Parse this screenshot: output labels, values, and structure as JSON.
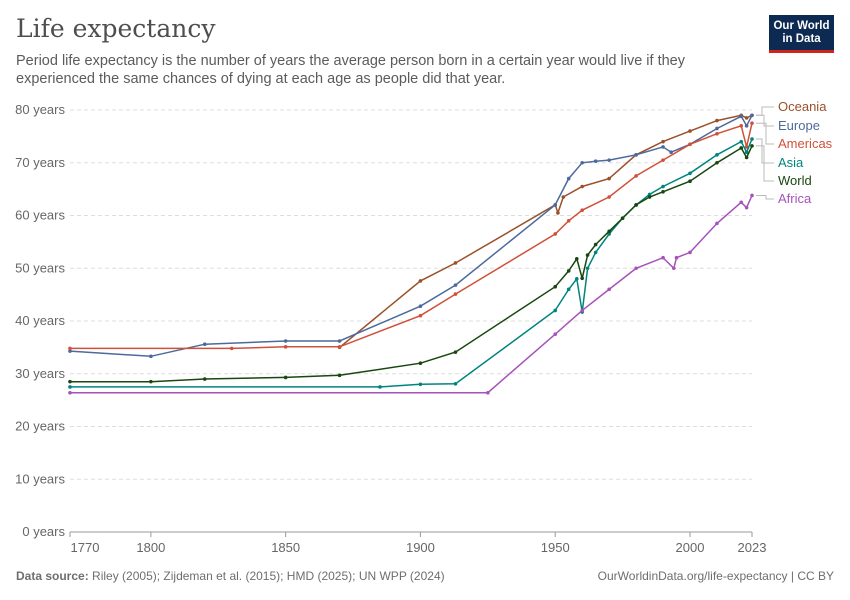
{
  "header": {
    "title": "Life expectancy",
    "subtitle": "Period life expectancy is the number of years the average person born in a certain year would live if they experienced the same chances of dying at each age as people did that year.",
    "logo": "Our World in Data"
  },
  "footer": {
    "source_label": "Data source:",
    "source": "Riley (2005); Zijdeman et al. (2015); HMD (2025); UN WPP (2024)",
    "url": "OurWorldinData.org/life-expectancy | CC BY"
  },
  "chart_data": {
    "type": "line",
    "title": "Life expectancy",
    "xlim": [
      1770,
      2023
    ],
    "ylim": [
      0,
      80
    ],
    "x_ticks": [
      "1770",
      "1800",
      "1850",
      "1900",
      "1950",
      "2000",
      "2023"
    ],
    "x_tick_values": [
      1770,
      1800,
      1850,
      1900,
      1950,
      2000,
      2023
    ],
    "y_ticks": [
      "0 years",
      "10 years",
      "20 years",
      "30 years",
      "40 years",
      "50 years",
      "60 years",
      "70 years",
      "80 years"
    ],
    "y_tick_values": [
      0,
      10,
      20,
      30,
      40,
      50,
      60,
      70,
      80
    ],
    "grid": "horizontal dashed",
    "legend": "right (line labels)",
    "series": [
      {
        "name": "Oceania",
        "color": "#9a5129",
        "points": [
          [
            1870,
            35
          ],
          [
            1900,
            47.6
          ],
          [
            1913,
            51
          ],
          [
            1950,
            62
          ],
          [
            1951,
            60.5
          ],
          [
            1953,
            63.5
          ],
          [
            1960,
            65.5
          ],
          [
            1970,
            67
          ],
          [
            1980,
            71.5
          ],
          [
            1990,
            74
          ],
          [
            2000,
            76
          ],
          [
            2010,
            78
          ],
          [
            2019,
            79
          ],
          [
            2021,
            78.5
          ],
          [
            2023,
            79
          ]
        ]
      },
      {
        "name": "Europe",
        "color": "#4c6a9c",
        "points": [
          [
            1770,
            34.3
          ],
          [
            1800,
            33.3
          ],
          [
            1820,
            35.6
          ],
          [
            1850,
            36.2
          ],
          [
            1870,
            36.2
          ],
          [
            1900,
            42.8
          ],
          [
            1913,
            46.8
          ],
          [
            1950,
            62
          ],
          [
            1955,
            67
          ],
          [
            1960,
            70
          ],
          [
            1965,
            70.3
          ],
          [
            1970,
            70.5
          ],
          [
            1980,
            71.5
          ],
          [
            1990,
            73
          ],
          [
            1993,
            72
          ],
          [
            2000,
            73.5
          ],
          [
            2010,
            76.5
          ],
          [
            2019,
            78.8
          ],
          [
            2021,
            77
          ],
          [
            2023,
            79
          ]
        ]
      },
      {
        "name": "Americas",
        "color": "#d1503a",
        "points": [
          [
            1770,
            34.8
          ],
          [
            1830,
            34.8
          ],
          [
            1850,
            35.1
          ],
          [
            1870,
            35.1
          ],
          [
            1900,
            41
          ],
          [
            1913,
            45.1
          ],
          [
            1950,
            56.5
          ],
          [
            1955,
            59
          ],
          [
            1960,
            61
          ],
          [
            1970,
            63.5
          ],
          [
            1980,
            67.5
          ],
          [
            1990,
            70.5
          ],
          [
            2000,
            73.5
          ],
          [
            2010,
            75.5
          ],
          [
            2019,
            77
          ],
          [
            2021,
            73
          ],
          [
            2023,
            77.5
          ]
        ]
      },
      {
        "name": "Asia",
        "color": "#00847e",
        "points": [
          [
            1770,
            27.5
          ],
          [
            1885,
            27.5
          ],
          [
            1900,
            28
          ],
          [
            1913,
            28.1
          ],
          [
            1950,
            42
          ],
          [
            1955,
            46
          ],
          [
            1958,
            48
          ],
          [
            1960,
            41.7
          ],
          [
            1962,
            50
          ],
          [
            1965,
            53
          ],
          [
            1970,
            56.5
          ],
          [
            1975,
            59.5
          ],
          [
            1980,
            62
          ],
          [
            1985,
            64
          ],
          [
            1990,
            65.5
          ],
          [
            2000,
            68
          ],
          [
            2010,
            71.5
          ],
          [
            2019,
            74
          ],
          [
            2021,
            72
          ],
          [
            2023,
            74.5
          ]
        ]
      },
      {
        "name": "World",
        "color": "#18470f",
        "points": [
          [
            1770,
            28.5
          ],
          [
            1800,
            28.5
          ],
          [
            1820,
            29
          ],
          [
            1850,
            29.3
          ],
          [
            1870,
            29.7
          ],
          [
            1900,
            32
          ],
          [
            1913,
            34.1
          ],
          [
            1950,
            46.5
          ],
          [
            1955,
            49.5
          ],
          [
            1958,
            51.8
          ],
          [
            1960,
            48.1
          ],
          [
            1962,
            52.5
          ],
          [
            1965,
            54.5
          ],
          [
            1970,
            57
          ],
          [
            1975,
            59.5
          ],
          [
            1980,
            62
          ],
          [
            1985,
            63.5
          ],
          [
            1990,
            64.5
          ],
          [
            2000,
            66.5
          ],
          [
            2010,
            70
          ],
          [
            2019,
            72.8
          ],
          [
            2021,
            71
          ],
          [
            2023,
            73.2
          ]
        ]
      },
      {
        "name": "Africa",
        "color": "#a652ba",
        "points": [
          [
            1770,
            26.4
          ],
          [
            1925,
            26.4
          ],
          [
            1950,
            37.5
          ],
          [
            1960,
            42
          ],
          [
            1970,
            46
          ],
          [
            1980,
            50
          ],
          [
            1990,
            52
          ],
          [
            1994,
            50
          ],
          [
            1995,
            52
          ],
          [
            2000,
            53
          ],
          [
            2010,
            58.5
          ],
          [
            2019,
            62.5
          ],
          [
            2021,
            61.5
          ],
          [
            2023,
            63.8
          ]
        ]
      }
    ]
  }
}
